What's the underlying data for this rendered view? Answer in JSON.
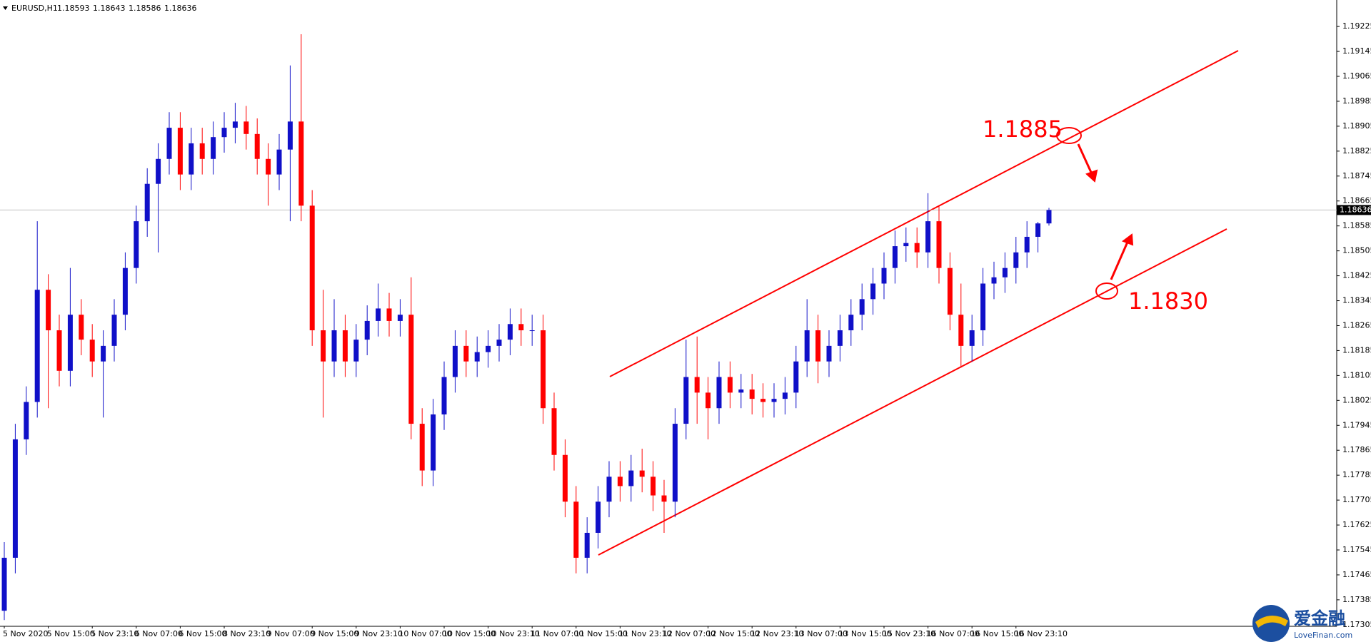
{
  "chart_data": {
    "type": "candlestick",
    "title": "EURUSD,H1",
    "up_color": "#1010c8",
    "down_color": "#ff0000",
    "ylim": [
      1.173,
      1.1931
    ],
    "yticks": [
      1.19225,
      1.19145,
      1.19065,
      1.18985,
      1.18905,
      1.18825,
      1.18745,
      1.18665,
      1.18585,
      1.18505,
      1.18425,
      1.18345,
      1.18265,
      1.18185,
      1.18105,
      1.18025,
      1.17945,
      1.17865,
      1.17785,
      1.17705,
      1.17625,
      1.17545,
      1.17465,
      1.17385,
      1.17305
    ],
    "categories": [
      "5 Nov 2020",
      null,
      null,
      null,
      "5 Nov 15:00",
      null,
      null,
      null,
      "5 Nov 23:10",
      null,
      null,
      null,
      "6 Nov 07:00",
      null,
      null,
      null,
      "6 Nov 15:00",
      null,
      null,
      null,
      "8 Nov 23:10",
      null,
      null,
      null,
      "9 Nov 07:00",
      null,
      null,
      null,
      "9 Nov 15:00",
      null,
      null,
      null,
      "9 Nov 23:10",
      null,
      null,
      null,
      "10 Nov 07:00",
      null,
      null,
      null,
      "10 Nov 15:00",
      null,
      null,
      null,
      "10 Nov 23:10",
      null,
      null,
      null,
      "11 Nov 07:00",
      null,
      null,
      null,
      "11 Nov 15:00",
      null,
      null,
      null,
      "11 Nov 23:10",
      null,
      null,
      null,
      "12 Nov 07:00",
      null,
      null,
      null,
      "12 Nov 15:00",
      null,
      null,
      null,
      "12 Nov 23:10",
      null,
      null,
      null,
      "13 Nov 07:00",
      null,
      null,
      null,
      "13 Nov 15:00",
      null,
      null,
      null,
      "15 Nov 23:10",
      null,
      null,
      null,
      "16 Nov 07:00",
      null,
      null,
      null,
      "16 Nov 15:00",
      null,
      null,
      null,
      "16 Nov 23:10",
      null,
      null,
      null
    ],
    "open": [
      1.1735,
      1.1752,
      1.179,
      1.1802,
      1.1838,
      1.1825,
      1.1812,
      1.183,
      1.1822,
      1.1815,
      1.182,
      1.183,
      1.1845,
      1.186,
      1.1872,
      1.188,
      1.189,
      1.1875,
      1.1885,
      1.188,
      1.1887,
      1.189,
      1.1892,
      1.1888,
      1.188,
      1.1875,
      1.1883,
      1.1892,
      1.1865,
      1.1825,
      1.1815,
      1.1825,
      1.1815,
      1.1822,
      1.1828,
      1.1832,
      1.1828,
      1.183,
      1.1795,
      1.178,
      1.1798,
      1.181,
      1.182,
      1.1815,
      1.1818,
      1.182,
      1.1822,
      1.1827,
      1.1825,
      1.1825,
      1.18,
      1.1785,
      1.177,
      1.1752,
      1.176,
      1.177,
      1.1778,
      1.1775,
      1.178,
      1.1778,
      1.1772,
      1.177,
      1.1795,
      1.181,
      1.1805,
      1.18,
      1.181,
      1.1805,
      1.1806,
      1.1803,
      1.1802,
      1.1803,
      1.1805,
      1.1815,
      1.1825,
      1.1815,
      1.182,
      1.1825,
      1.183,
      1.1835,
      1.184,
      1.1845,
      1.1852,
      1.1853,
      1.185,
      1.186,
      1.1845,
      1.183,
      1.182,
      1.1825,
      1.184,
      1.1842,
      1.1845,
      1.185,
      1.1855,
      1.18593
    ],
    "high": [
      1.1757,
      1.1795,
      1.1807,
      1.186,
      1.1843,
      1.183,
      1.1845,
      1.1835,
      1.1827,
      1.1825,
      1.1835,
      1.185,
      1.1865,
      1.1877,
      1.1885,
      1.1895,
      1.1895,
      1.189,
      1.189,
      1.1892,
      1.1895,
      1.1898,
      1.1897,
      1.1893,
      1.1885,
      1.1888,
      1.191,
      1.192,
      1.187,
      1.1838,
      1.1835,
      1.183,
      1.1827,
      1.1833,
      1.184,
      1.1837,
      1.1835,
      1.1842,
      1.18,
      1.1803,
      1.1815,
      1.1825,
      1.1825,
      1.1823,
      1.1825,
      1.1827,
      1.1832,
      1.1832,
      1.183,
      1.183,
      1.1805,
      1.179,
      1.1775,
      1.1765,
      1.1775,
      1.1783,
      1.1783,
      1.1785,
      1.1787,
      1.1783,
      1.1777,
      1.18,
      1.1822,
      1.1823,
      1.181,
      1.1815,
      1.1815,
      1.1811,
      1.1811,
      1.1808,
      1.1808,
      1.181,
      1.182,
      1.1835,
      1.183,
      1.1825,
      1.183,
      1.1835,
      1.184,
      1.1845,
      1.185,
      1.1857,
      1.1858,
      1.1858,
      1.1869,
      1.1865,
      1.185,
      1.184,
      1.183,
      1.1845,
      1.1847,
      1.185,
      1.1855,
      1.186,
      1.18598,
      1.18643
    ],
    "low": [
      1.1732,
      1.1747,
      1.1785,
      1.1797,
      1.18,
      1.1807,
      1.1807,
      1.1817,
      1.181,
      1.1797,
      1.1815,
      1.1825,
      1.184,
      1.1855,
      1.185,
      1.1875,
      1.187,
      1.187,
      1.1875,
      1.1875,
      1.1882,
      1.1885,
      1.1883,
      1.1875,
      1.1865,
      1.187,
      1.186,
      1.186,
      1.182,
      1.1797,
      1.181,
      1.181,
      1.181,
      1.1817,
      1.1823,
      1.1823,
      1.1823,
      1.179,
      1.1775,
      1.1775,
      1.1793,
      1.1805,
      1.181,
      1.181,
      1.1813,
      1.1815,
      1.1817,
      1.182,
      1.182,
      1.1795,
      1.178,
      1.1765,
      1.1747,
      1.1747,
      1.1755,
      1.1765,
      1.177,
      1.177,
      1.1773,
      1.1767,
      1.176,
      1.1765,
      1.179,
      1.1795,
      1.179,
      1.1795,
      1.18,
      1.18,
      1.1798,
      1.1797,
      1.1797,
      1.1798,
      1.18,
      1.181,
      1.1808,
      1.181,
      1.1815,
      1.182,
      1.1825,
      1.183,
      1.1835,
      1.184,
      1.1847,
      1.1845,
      1.1845,
      1.184,
      1.1825,
      1.1813,
      1.1815,
      1.182,
      1.1835,
      1.1837,
      1.184,
      1.1845,
      1.185,
      1.18586
    ],
    "close": [
      1.1752,
      1.179,
      1.1802,
      1.1838,
      1.1825,
      1.1812,
      1.183,
      1.1822,
      1.1815,
      1.182,
      1.183,
      1.1845,
      1.186,
      1.1872,
      1.188,
      1.189,
      1.1875,
      1.1885,
      1.188,
      1.1887,
      1.189,
      1.1892,
      1.1888,
      1.188,
      1.1875,
      1.1883,
      1.1892,
      1.1865,
      1.1825,
      1.1815,
      1.1825,
      1.1815,
      1.1822,
      1.1828,
      1.1832,
      1.1828,
      1.183,
      1.1795,
      1.178,
      1.1798,
      1.181,
      1.182,
      1.1815,
      1.1818,
      1.182,
      1.1822,
      1.1827,
      1.1825,
      1.1825,
      1.18,
      1.1785,
      1.177,
      1.1752,
      1.176,
      1.177,
      1.1778,
      1.1775,
      1.178,
      1.1778,
      1.1772,
      1.177,
      1.1795,
      1.181,
      1.1805,
      1.18,
      1.181,
      1.1805,
      1.1806,
      1.1803,
      1.1802,
      1.1803,
      1.1805,
      1.1815,
      1.1825,
      1.1815,
      1.182,
      1.1825,
      1.183,
      1.1835,
      1.184,
      1.1845,
      1.1852,
      1.1853,
      1.185,
      1.186,
      1.1845,
      1.183,
      1.182,
      1.1825,
      1.184,
      1.1842,
      1.1845,
      1.185,
      1.1855,
      1.18593,
      1.18636
    ],
    "annotations": [
      "1.1885",
      "1.1830"
    ]
  },
  "watermark": {
    "brand": "爱金融",
    "site": "LoveFinan.com"
  }
}
